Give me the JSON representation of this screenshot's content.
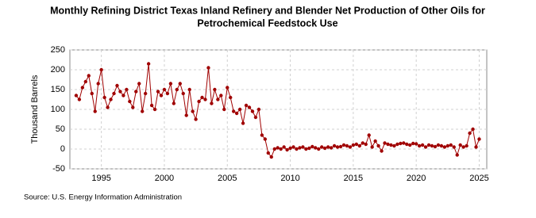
{
  "chart_data": {
    "type": "line",
    "title": "Monthly Refining District Texas Inland Refinery and Blender Net Production of Other Oils for Petrochemical Feedstock Use",
    "y_label": "Thousand Barrels",
    "source": "Source: U.S. Energy Information Administration",
    "x": [
      1993,
      1993.25,
      1993.5,
      1993.75,
      1994,
      1994.25,
      1994.5,
      1994.75,
      1995,
      1995.25,
      1995.5,
      1995.75,
      1996,
      1996.25,
      1996.5,
      1996.75,
      1997,
      1997.25,
      1997.5,
      1997.75,
      1998,
      1998.25,
      1998.5,
      1998.75,
      1999,
      1999.25,
      1999.5,
      1999.75,
      2000,
      2000.25,
      2000.5,
      2000.75,
      2001,
      2001.25,
      2001.5,
      2001.75,
      2002,
      2002.25,
      2002.5,
      2002.75,
      2003,
      2003.25,
      2003.5,
      2003.75,
      2004,
      2004.25,
      2004.5,
      2004.75,
      2005,
      2005.25,
      2005.5,
      2005.75,
      2006,
      2006.25,
      2006.5,
      2006.75,
      2007,
      2007.25,
      2007.5,
      2007.75,
      2008,
      2008.25,
      2008.5,
      2008.75,
      2009,
      2009.25,
      2009.5,
      2009.75,
      2010,
      2010.25,
      2010.5,
      2010.75,
      2011,
      2011.25,
      2011.5,
      2011.75,
      2012,
      2012.25,
      2012.5,
      2012.75,
      2013,
      2013.25,
      2013.5,
      2013.75,
      2014,
      2014.25,
      2014.5,
      2014.75,
      2015,
      2015.25,
      2015.5,
      2015.75,
      2016,
      2016.25,
      2016.5,
      2016.75,
      2017,
      2017.25,
      2017.5,
      2017.75,
      2018,
      2018.25,
      2018.5,
      2018.75,
      2019,
      2019.25,
      2019.5,
      2019.75,
      2020,
      2020.25,
      2020.5,
      2020.75,
      2021,
      2021.25,
      2021.5,
      2021.75,
      2022,
      2022.25,
      2022.5,
      2022.75,
      2023,
      2023.25,
      2023.5,
      2023.75,
      2024,
      2024.25,
      2024.5,
      2024.75,
      2025
    ],
    "series": [
      {
        "name": "Other Oils for Petrochemical Feedstock Use",
        "color": "#a00000",
        "values": [
          135,
          125,
          155,
          170,
          185,
          140,
          95,
          165,
          200,
          130,
          105,
          125,
          140,
          160,
          145,
          135,
          150,
          120,
          105,
          145,
          165,
          95,
          140,
          215,
          110,
          100,
          145,
          135,
          150,
          140,
          165,
          115,
          150,
          165,
          140,
          85,
          150,
          95,
          75,
          120,
          130,
          125,
          205,
          115,
          150,
          125,
          135,
          100,
          155,
          130,
          95,
          90,
          100,
          65,
          110,
          105,
          95,
          80,
          100,
          35,
          25,
          -10,
          -20,
          0,
          3,
          0,
          5,
          -2,
          2,
          5,
          0,
          3,
          5,
          0,
          2,
          6,
          3,
          0,
          5,
          2,
          5,
          3,
          8,
          5,
          6,
          10,
          8,
          5,
          10,
          12,
          8,
          15,
          12,
          35,
          5,
          20,
          8,
          -5,
          15,
          12,
          10,
          8,
          12,
          14,
          15,
          12,
          10,
          14,
          13,
          8,
          10,
          5,
          10,
          8,
          6,
          10,
          8,
          5,
          8,
          10,
          5,
          -15,
          10,
          5,
          8,
          40,
          50,
          5,
          25
        ]
      }
    ],
    "xlim": [
      1992.5,
      2025.6
    ],
    "xticks": [
      1995,
      2000,
      2005,
      2010,
      2015,
      2020,
      2025
    ],
    "ylim": [
      -50,
      250
    ],
    "yticks": [
      -50,
      0,
      50,
      100,
      150,
      200,
      250
    ],
    "grid": true
  }
}
